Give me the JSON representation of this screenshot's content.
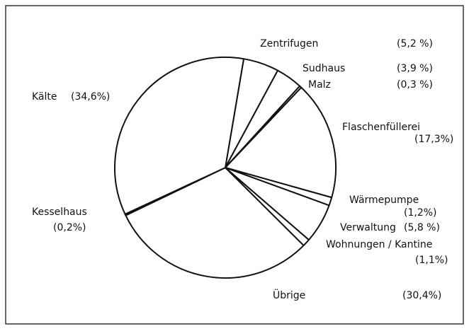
{
  "chart_data": {
    "type": "pie",
    "categories": [
      "Zentrifugen",
      "Sudhaus",
      "Malz",
      "Flaschenfüllerei",
      "Wärmepumpe",
      "Verwaltung",
      "Wohnungen / Kantine",
      "Übrige",
      "Kesselhaus",
      "Kälte"
    ],
    "values": [
      5.2,
      3.9,
      0.3,
      17.3,
      1.2,
      5.8,
      1.1,
      30.4,
      0.2,
      34.6
    ],
    "value_labels": [
      "(5,2 %)",
      "(3,9 %)",
      "(0,3 %)",
      "(17,3%)",
      "(1,2%)",
      "(5,8 %)",
      "(1,1%)",
      "(30,4%)",
      "(0,2%)",
      "(34,6%)"
    ],
    "color": "#ffffff"
  }
}
